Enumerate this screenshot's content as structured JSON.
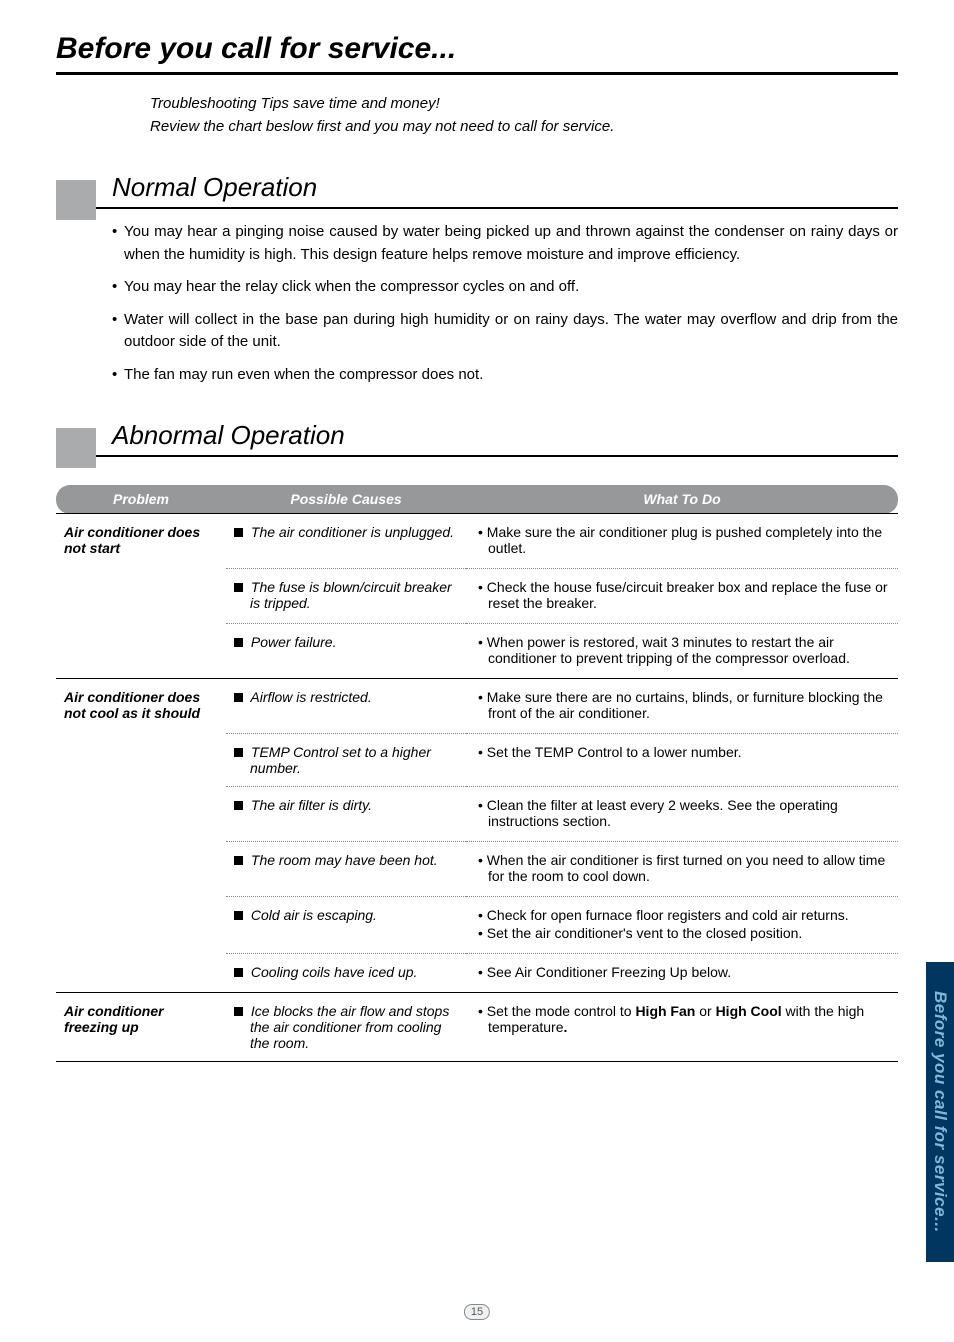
{
  "page_title": "Before you call for service...",
  "intro_lines": [
    "Troubleshooting Tips save time and money!",
    "Review the chart beslow first and you may not need to call for service."
  ],
  "sections": {
    "normal": {
      "heading": "Normal Operation",
      "bullets": [
        "You may hear a pinging noise caused by water being picked up and thrown against the condenser on rainy days or when the humidity is high. This design feature helps remove moisture and improve efficiency.",
        "You may hear the relay click when the compressor cycles on and off.",
        "Water will collect in the base pan during high humidity or on rainy days. The water may overflow and drip from the outdoor side of the unit.",
        "The fan may run even when the compressor does not."
      ]
    },
    "abnormal": {
      "heading": "Abnormal Operation"
    }
  },
  "table": {
    "headers": {
      "problem": "Problem",
      "causes": "Possible Causes",
      "what": "What To Do"
    },
    "groups": [
      {
        "problem": "Air conditioner does not start",
        "rows": [
          {
            "cause": "The air conditioner is unplugged.",
            "what": [
              "• Make sure the air conditioner plug is pushed completely into the outlet."
            ]
          },
          {
            "cause": "The fuse is blown/circuit breaker is tripped.",
            "what": [
              "• Check the house fuse/circuit breaker box and replace the fuse or reset the breaker."
            ]
          },
          {
            "cause": "Power failure.",
            "what": [
              "• When power is restored, wait 3 minutes to restart the air conditioner to prevent tripping of the compressor overload."
            ]
          }
        ]
      },
      {
        "problem": "Air conditioner does not cool as it should",
        "rows": [
          {
            "cause": "Airflow is restricted.",
            "what": [
              "• Make sure there are no curtains, blinds, or furniture blocking the front of the air conditioner."
            ]
          },
          {
            "cause": "TEMP Control set to a higher number.",
            "what": [
              "• Set the TEMP Control to a lower number."
            ]
          },
          {
            "cause": "The air filter is dirty.",
            "what": [
              "• Clean the filter at least every 2 weeks. See the operating instructions section."
            ]
          },
          {
            "cause": "The room may have been hot.",
            "what": [
              "• When the air conditioner is first turned on you need to allow time for the room to cool down."
            ]
          },
          {
            "cause": "Cold air is escaping.",
            "what": [
              "• Check for open furnace floor registers and cold air returns.",
              "• Set the air conditioner's vent to the closed position."
            ]
          },
          {
            "cause": "Cooling coils have iced up.",
            "what": [
              "• See Air Conditioner Freezing Up below."
            ]
          }
        ]
      },
      {
        "problem": "Air conditioner freezing up",
        "rows": [
          {
            "cause": "Ice blocks the air flow and stops the air conditioner from cooling the room.",
            "what_html": "• Set the mode control to <b>High Fan</b> or <b>High Cool</b> with the high temperature<b>.</b>"
          }
        ]
      }
    ]
  },
  "side_tab": "Before you call for service...",
  "page_number": "15",
  "colors": {
    "header_bg": "#969899",
    "header_fg": "#ffffff",
    "sidetab_bg": "#00365f",
    "sidetab_fg": "#7fb8d8",
    "graybox": "#a9abad"
  }
}
